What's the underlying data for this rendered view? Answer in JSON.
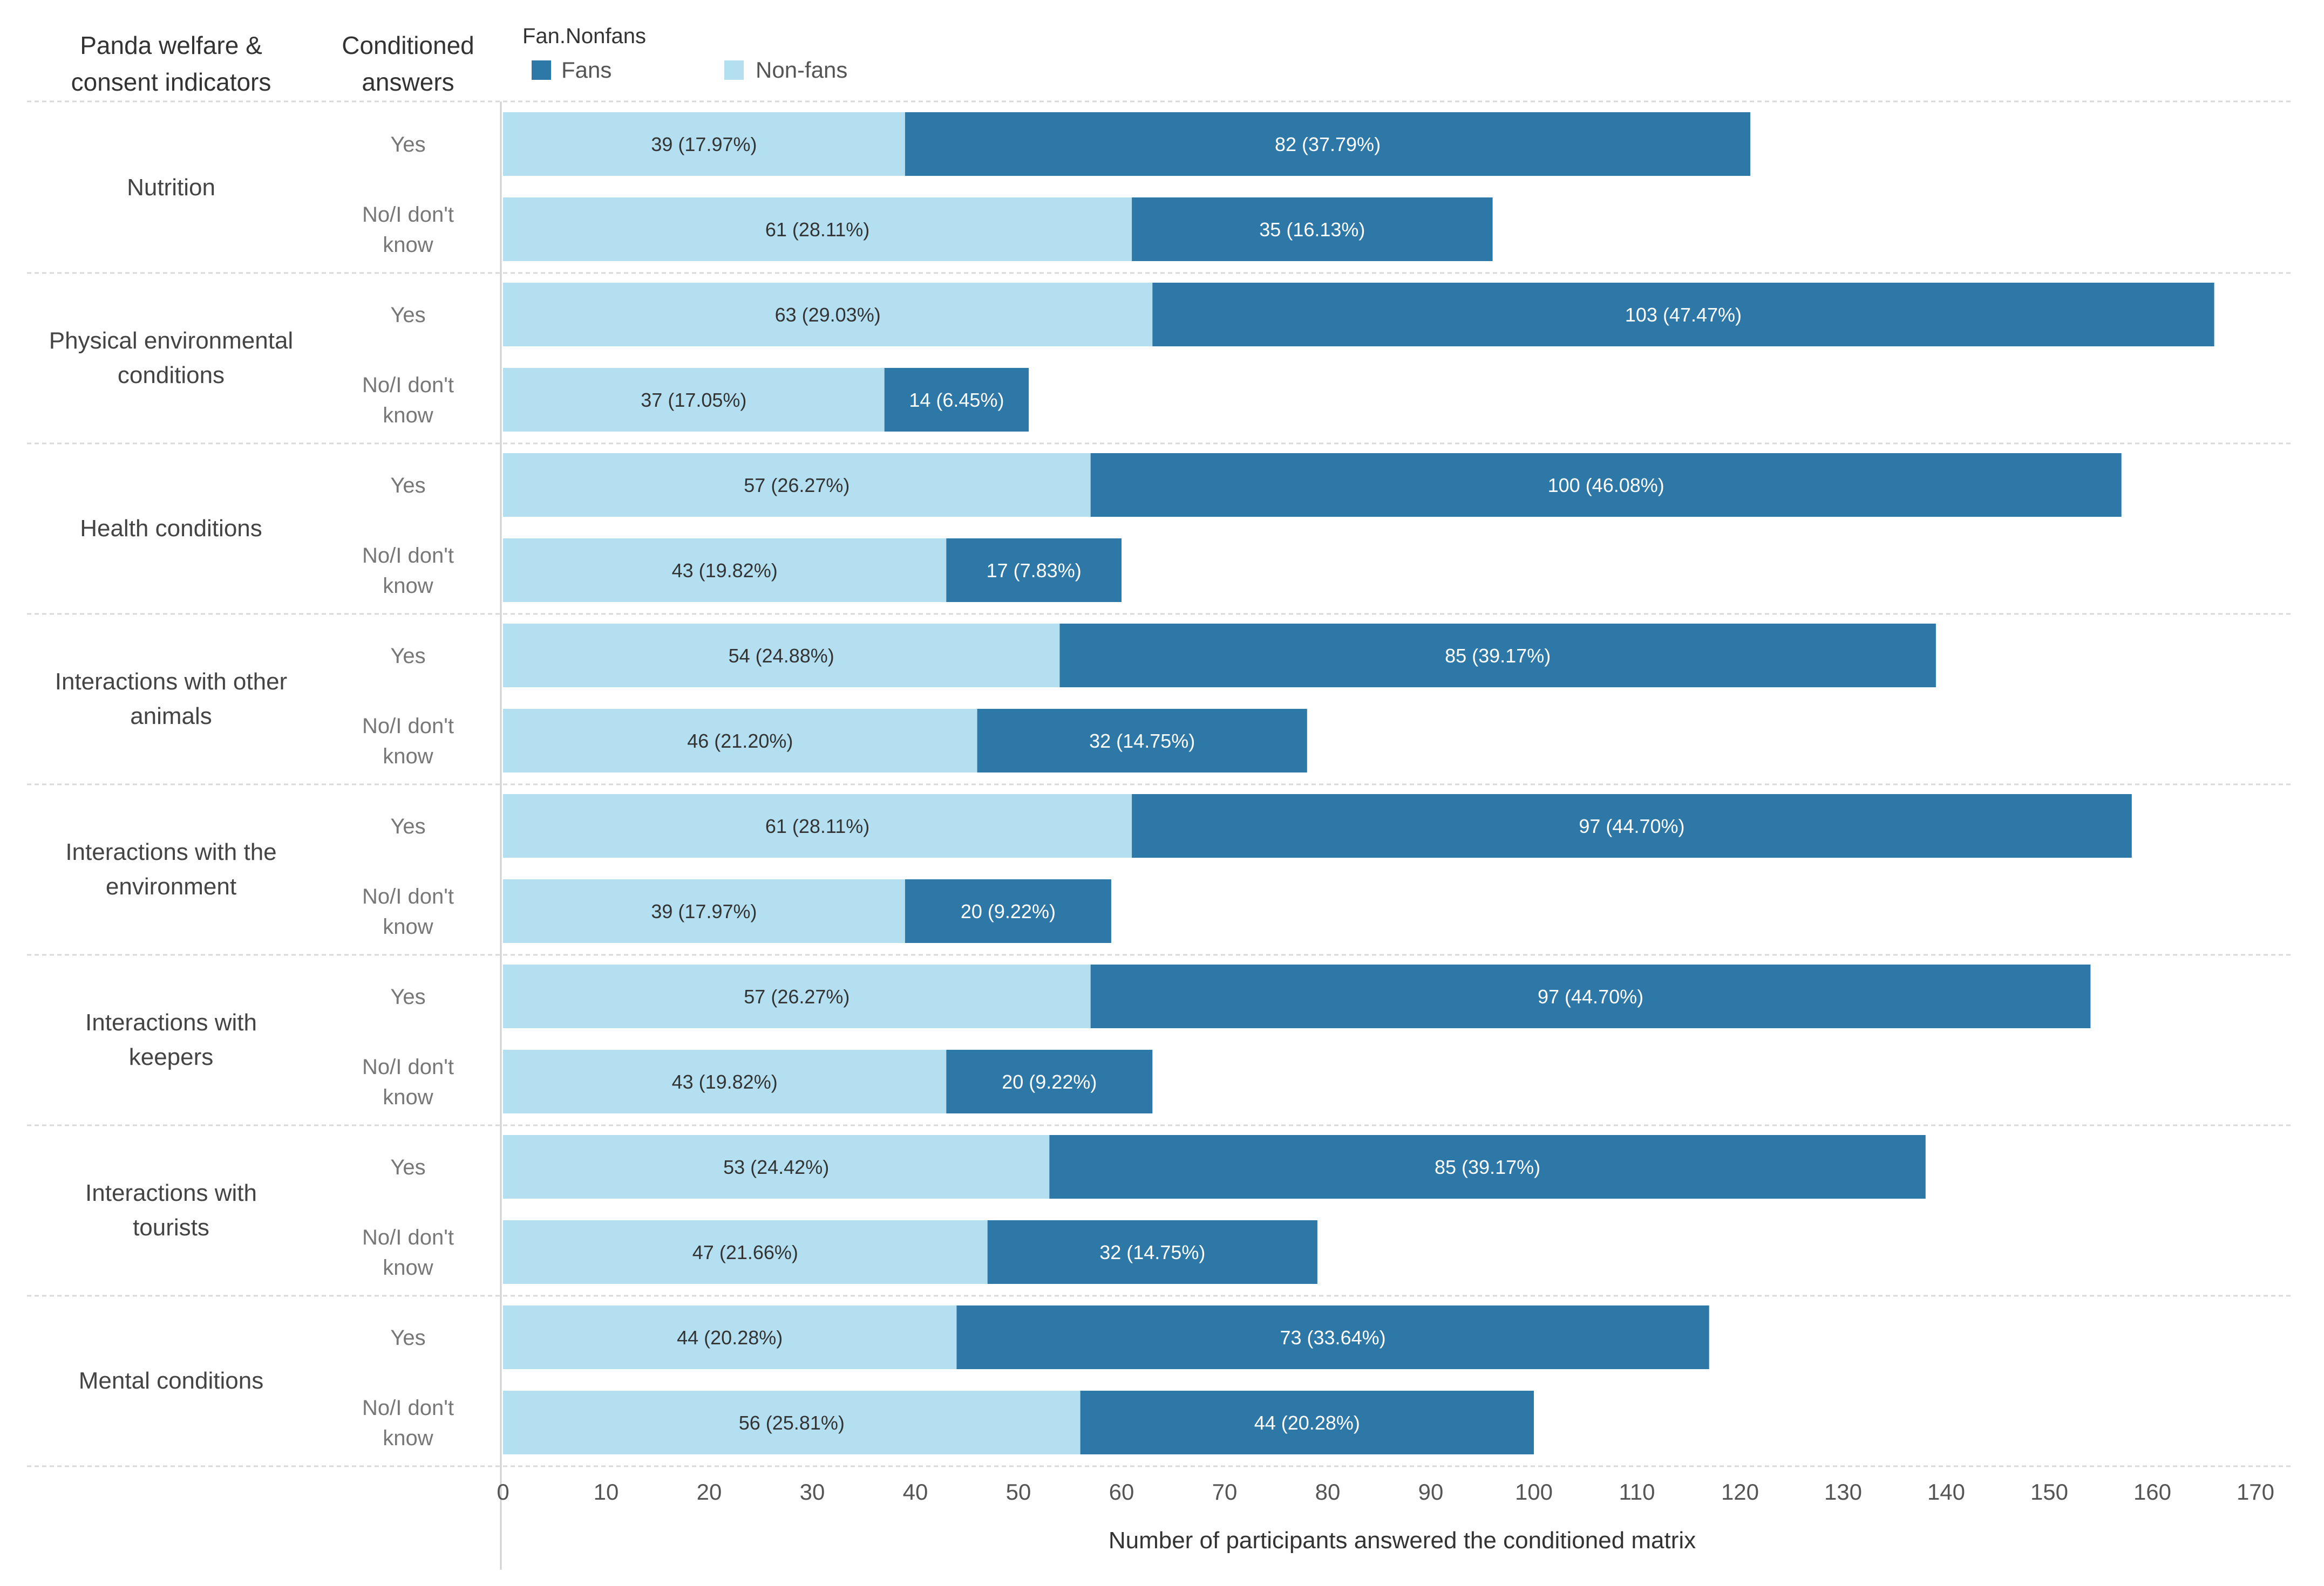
{
  "headers": {
    "indicator_line1": "Panda welfare &",
    "indicator_line2": "consent indicators",
    "answers_line1": "Conditioned",
    "answers_line2": "answers"
  },
  "legend": {
    "title": "Fan.Nonfans",
    "fans": "Fans",
    "nonfans": "Non-fans"
  },
  "colors": {
    "fans": "#2e78a8",
    "nonfans": "#b3dff0",
    "gridline": "#d9d9d9",
    "fans_text": "#ffffff",
    "nonfans_text": "#333333"
  },
  "chart_data": {
    "type": "bar",
    "orientation": "horizontal",
    "stacked": true,
    "xlabel": "Number of participants answered the conditioned matrix",
    "xlim": [
      0,
      170
    ],
    "xticks": [
      0,
      10,
      20,
      30,
      40,
      50,
      60,
      70,
      80,
      90,
      100,
      110,
      120,
      130,
      140,
      150,
      160,
      170
    ],
    "legend_position": "top-left",
    "series": [
      {
        "name": "Non-fans",
        "key": "nonfans"
      },
      {
        "name": "Fans",
        "key": "fans"
      }
    ],
    "groups": [
      {
        "label_lines": [
          "Nutrition"
        ],
        "rows": [
          {
            "answer_lines": [
              "Yes"
            ],
            "nonfans": 39,
            "nonfans_label": "39  (17.97%)",
            "fans": 82,
            "fans_label": "82  (37.79%)"
          },
          {
            "answer_lines": [
              "No/I don't",
              "know"
            ],
            "nonfans": 61,
            "nonfans_label": "61  (28.11%)",
            "fans": 35,
            "fans_label": "35  (16.13%)"
          }
        ]
      },
      {
        "label_lines": [
          "Physical environmental",
          "conditions"
        ],
        "rows": [
          {
            "answer_lines": [
              "Yes"
            ],
            "nonfans": 63,
            "nonfans_label": "63  (29.03%)",
            "fans": 103,
            "fans_label": "103  (47.47%)"
          },
          {
            "answer_lines": [
              "No/I don't",
              "know"
            ],
            "nonfans": 37,
            "nonfans_label": "37  (17.05%)",
            "fans": 14,
            "fans_label": "14  (6.45%)"
          }
        ]
      },
      {
        "label_lines": [
          "Health conditions"
        ],
        "rows": [
          {
            "answer_lines": [
              "Yes"
            ],
            "nonfans": 57,
            "nonfans_label": "57  (26.27%)",
            "fans": 100,
            "fans_label": "100  (46.08%)"
          },
          {
            "answer_lines": [
              "No/I don't",
              "know"
            ],
            "nonfans": 43,
            "nonfans_label": "43  (19.82%)",
            "fans": 17,
            "fans_label": "17  (7.83%)"
          }
        ]
      },
      {
        "label_lines": [
          "Interactions with other",
          "animals"
        ],
        "rows": [
          {
            "answer_lines": [
              "Yes"
            ],
            "nonfans": 54,
            "nonfans_label": "54  (24.88%)",
            "fans": 85,
            "fans_label": "85  (39.17%)"
          },
          {
            "answer_lines": [
              "No/I don't",
              "know"
            ],
            "nonfans": 46,
            "nonfans_label": "46  (21.20%)",
            "fans": 32,
            "fans_label": "32  (14.75%)"
          }
        ]
      },
      {
        "label_lines": [
          "Interactions with the",
          "environment"
        ],
        "rows": [
          {
            "answer_lines": [
              "Yes"
            ],
            "nonfans": 61,
            "nonfans_label": "61  (28.11%)",
            "fans": 97,
            "fans_label": "97  (44.70%)"
          },
          {
            "answer_lines": [
              "No/I don't",
              "know"
            ],
            "nonfans": 39,
            "nonfans_label": "39  (17.97%)",
            "fans": 20,
            "fans_label": "20  (9.22%)"
          }
        ]
      },
      {
        "label_lines": [
          "Interactions with",
          "keepers"
        ],
        "rows": [
          {
            "answer_lines": [
              "Yes"
            ],
            "nonfans": 57,
            "nonfans_label": "57  (26.27%)",
            "fans": 97,
            "fans_label": "97  (44.70%)"
          },
          {
            "answer_lines": [
              "No/I don't",
              "know"
            ],
            "nonfans": 43,
            "nonfans_label": "43  (19.82%)",
            "fans": 20,
            "fans_label": "20  (9.22%)"
          }
        ]
      },
      {
        "label_lines": [
          "Interactions with",
          "tourists"
        ],
        "rows": [
          {
            "answer_lines": [
              "Yes"
            ],
            "nonfans": 53,
            "nonfans_label": "53  (24.42%)",
            "fans": 85,
            "fans_label": "85  (39.17%)"
          },
          {
            "answer_lines": [
              "No/I don't",
              "know"
            ],
            "nonfans": 47,
            "nonfans_label": "47  (21.66%)",
            "fans": 32,
            "fans_label": "32  (14.75%)"
          }
        ]
      },
      {
        "label_lines": [
          "Mental conditions"
        ],
        "rows": [
          {
            "answer_lines": [
              "Yes"
            ],
            "nonfans": 44,
            "nonfans_label": "44  (20.28%)",
            "fans": 73,
            "fans_label": "73  (33.64%)"
          },
          {
            "answer_lines": [
              "No/I don't",
              "know"
            ],
            "nonfans": 56,
            "nonfans_label": "56  (25.81%)",
            "fans": 44,
            "fans_label": "44  (20.28%)"
          }
        ]
      }
    ]
  }
}
